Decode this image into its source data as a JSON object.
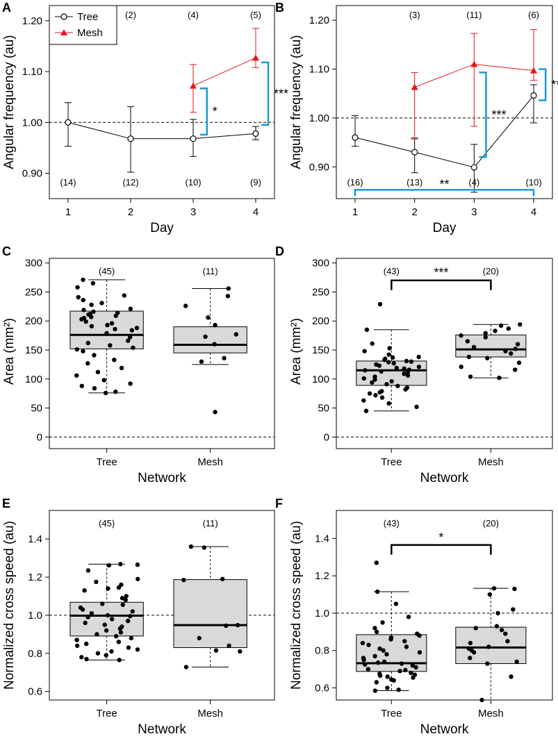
{
  "colors": {
    "tree": "#000000",
    "mesh": "#e8141b",
    "bracket": "#1a9ad6",
    "box_fill": "#d9d9d9"
  },
  "legend": {
    "tree": "Tree",
    "mesh": "Mesh"
  },
  "chart_data": [
    {
      "panel": "A",
      "type": "line",
      "xlabel": "Day",
      "ylabel": "Angular frequency (au)",
      "x_ticks": [
        1,
        2,
        3,
        4
      ],
      "y_ticks": [
        "0.90",
        "1.00",
        "1.10",
        "1.20"
      ],
      "ylim": [
        0.85,
        1.23
      ],
      "reference_line": 1.0,
      "series": [
        {
          "name": "Tree",
          "x": [
            1,
            2,
            3,
            4
          ],
          "y": [
            1.0,
            0.968,
            0.968,
            0.978
          ],
          "lower": [
            0.953,
            0.902,
            0.933,
            0.966
          ],
          "upper": [
            1.039,
            1.031,
            1.006,
            0.992
          ],
          "n": [
            "(14)",
            "(12)",
            "(10)",
            "(9)"
          ]
        },
        {
          "name": "Mesh",
          "x": [
            3,
            4
          ],
          "y": [
            1.072,
            1.127
          ],
          "lower": [
            1.02,
            1.108
          ],
          "upper": [
            1.114,
            1.185
          ],
          "n": [
            "(4)",
            "(5)"
          ]
        }
      ],
      "top_counts": [
        {
          "x": 2,
          "label": "(2)"
        },
        {
          "x": 3,
          "label": "(4)"
        },
        {
          "x": 4,
          "label": "(5)"
        }
      ],
      "bottom_counts": [
        {
          "x": 1,
          "label": "(14)"
        },
        {
          "x": 2,
          "label": "(12)"
        },
        {
          "x": 3,
          "label": "(10)"
        },
        {
          "x": 4,
          "label": "(9)"
        }
      ],
      "significance": [
        {
          "orientation": "vertical",
          "x": 3.22,
          "y1": 0.976,
          "y2": 1.067,
          "label": "*"
        },
        {
          "orientation": "vertical",
          "x": 4.2,
          "y1": 0.995,
          "y2": 1.118,
          "label": "***"
        }
      ]
    },
    {
      "panel": "B",
      "type": "line",
      "xlabel": "Day",
      "ylabel": "Angular frequency (au)",
      "x_ticks": [
        1,
        2,
        3,
        4
      ],
      "y_ticks": [
        "0.90",
        "1.00",
        "1.10",
        "1.20"
      ],
      "ylim": [
        0.835,
        1.23
      ],
      "reference_line": 1.0,
      "series": [
        {
          "name": "Tree",
          "x": [
            1,
            2,
            3,
            4
          ],
          "y": [
            0.96,
            0.93,
            0.899,
            1.046
          ],
          "lower": [
            0.942,
            0.888,
            0.848,
            0.99
          ],
          "upper": [
            1.005,
            0.959,
            0.946,
            1.068
          ],
          "n": [
            "(16)",
            "(13)",
            "(4)",
            "(10)"
          ]
        },
        {
          "name": "Mesh",
          "x": [
            2,
            3,
            4
          ],
          "y": [
            1.063,
            1.11,
            1.097
          ],
          "lower": [
            0.957,
            0.983,
            1.077
          ],
          "upper": [
            1.093,
            1.173,
            1.181
          ],
          "n": [
            "(3)",
            "(11)",
            "(6)"
          ]
        }
      ],
      "top_counts": [
        {
          "x": 2,
          "label": "(3)"
        },
        {
          "x": 3,
          "label": "(11)"
        },
        {
          "x": 4,
          "label": "(6)"
        }
      ],
      "bottom_counts": [
        {
          "x": 1,
          "label": "(16)"
        },
        {
          "x": 2,
          "label": "(13)"
        },
        {
          "x": 3,
          "label": "(4)"
        },
        {
          "x": 4,
          "label": "(10)"
        }
      ],
      "significance": [
        {
          "orientation": "vertical",
          "x": 3.2,
          "y1": 0.92,
          "y2": 1.093,
          "label": "***"
        },
        {
          "orientation": "vertical",
          "x": 4.2,
          "y1": 1.036,
          "y2": 1.1,
          "label": "**"
        },
        {
          "orientation": "horizontal",
          "x1": 1,
          "x2": 4,
          "y": 0.853,
          "label": "**"
        }
      ]
    },
    {
      "panel": "C",
      "type": "box",
      "xlabel": "Network",
      "ylabel": "Area (mm²)",
      "categories": [
        "Tree",
        "Mesh"
      ],
      "y_ticks": [
        0,
        50,
        100,
        150,
        200,
        250,
        300
      ],
      "ylim": [
        -20,
        308
      ],
      "reference_line": 0,
      "counts": [
        "(45)",
        "(11)"
      ],
      "boxes": [
        {
          "name": "Tree",
          "min": 76,
          "q1": 152,
          "median": 176,
          "q3": 217,
          "max": 271
        },
        {
          "name": "Mesh",
          "min": 125,
          "q1": 145,
          "median": 159,
          "q3": 190,
          "max": 256
        }
      ],
      "points": [
        {
          "cat": 0,
          "values": [
            271,
            265,
            258,
            244,
            241,
            236,
            231,
            228,
            221,
            219,
            216,
            214,
            212,
            211,
            209,
            207,
            205,
            203,
            199,
            196,
            193,
            191,
            188,
            186,
            184,
            179,
            172,
            166,
            162,
            158,
            154,
            151,
            148,
            141,
            133,
            127,
            119,
            112,
            106,
            98,
            92,
            88,
            84,
            78,
            76
          ]
        },
        {
          "cat": 1,
          "values": [
            256,
            243,
            226,
            206,
            193,
            177,
            173,
            160,
            136,
            130,
            43
          ]
        }
      ],
      "significance": []
    },
    {
      "panel": "D",
      "type": "box",
      "xlabel": "Network",
      "ylabel": "Area (mm²)",
      "categories": [
        "Tree",
        "Mesh"
      ],
      "y_ticks": [
        0,
        50,
        100,
        150,
        200,
        250,
        300
      ],
      "ylim": [
        -20,
        308
      ],
      "reference_line": 0,
      "counts": [
        "(43)",
        "(20)"
      ],
      "boxes": [
        {
          "name": "Tree",
          "min": 45,
          "q1": 89,
          "median": 115,
          "q3": 131,
          "max": 185
        },
        {
          "name": "Mesh",
          "min": 102,
          "q1": 138,
          "median": 151,
          "q3": 176,
          "max": 194
        }
      ],
      "points": [
        {
          "cat": 0,
          "values": [
            229,
            185,
            161,
            153,
            148,
            142,
            138,
            137,
            135,
            133,
            131,
            130,
            129,
            127,
            125,
            123,
            121,
            119,
            118,
            116,
            115,
            113,
            111,
            109,
            106,
            104,
            101,
            99,
            96,
            94,
            91,
            88,
            85,
            82,
            79,
            77,
            75,
            72,
            68,
            63,
            58,
            52,
            45
          ]
        },
        {
          "cat": 1,
          "values": [
            194,
            192,
            187,
            183,
            179,
            175,
            172,
            165,
            160,
            155,
            152,
            148,
            144,
            138,
            136,
            128,
            121,
            116,
            104,
            102
          ]
        }
      ],
      "significance": [
        {
          "orientation": "horizontal",
          "x1": 0,
          "x2": 1,
          "y": 270,
          "label": "***"
        }
      ]
    },
    {
      "panel": "E",
      "type": "box",
      "xlabel": "Network",
      "ylabel": "Normalized cross speed (au)",
      "categories": [
        "Tree",
        "Mesh"
      ],
      "y_ticks": [
        "0.6",
        "0.8",
        "1.0",
        "1.2",
        "1.4"
      ],
      "ylim": [
        0.555,
        1.55
      ],
      "reference_line": 1.0,
      "counts": [
        "(45)",
        "(11)"
      ],
      "boxes": [
        {
          "name": "Tree",
          "min": 0.765,
          "q1": 0.891,
          "median": 0.998,
          "q3": 1.068,
          "max": 1.268
        },
        {
          "name": "Mesh",
          "min": 0.728,
          "q1": 0.83,
          "median": 0.948,
          "q3": 1.187,
          "max": 1.36
        }
      ],
      "points": [
        {
          "cat": 0,
          "values": [
            1.268,
            1.265,
            1.262,
            1.235,
            1.19,
            1.175,
            1.16,
            1.145,
            1.14,
            1.13,
            1.1,
            1.09,
            1.08,
            1.06,
            1.055,
            1.04,
            1.03,
            1.02,
            1.01,
            1.0,
            0.995,
            0.99,
            0.98,
            0.97,
            0.96,
            0.95,
            0.94,
            0.93,
            0.92,
            0.91,
            0.9,
            0.89,
            0.88,
            0.87,
            0.86,
            0.85,
            0.84,
            0.83,
            0.82,
            0.81,
            0.8,
            0.79,
            0.78,
            0.77,
            0.765
          ]
        },
        {
          "cat": 1,
          "values": [
            1.36,
            1.355,
            1.19,
            1.185,
            0.948,
            0.945,
            0.88,
            0.84,
            0.815,
            0.81,
            0.728
          ]
        }
      ],
      "significance": []
    },
    {
      "panel": "F",
      "type": "box",
      "xlabel": "Network",
      "ylabel": "Normalized cross speed (au)",
      "categories": [
        "Tree",
        "Mesh"
      ],
      "y_ticks": [
        "0.6",
        "0.8",
        "1.0",
        "1.2",
        "1.4"
      ],
      "ylim": [
        0.535,
        1.55
      ],
      "reference_line": 1.0,
      "counts": [
        "(43)",
        "(20)"
      ],
      "boxes": [
        {
          "name": "Tree",
          "min": 0.585,
          "q1": 0.688,
          "median": 0.732,
          "q3": 0.885,
          "max": 1.115
        },
        {
          "name": "Mesh",
          "min": 0.535,
          "q1": 0.73,
          "median": 0.816,
          "q3": 0.925,
          "max": 1.133
        }
      ],
      "points": [
        {
          "cat": 0,
          "values": [
            1.27,
            1.115,
            1.05,
            0.98,
            0.95,
            0.92,
            0.9,
            0.89,
            0.88,
            0.87,
            0.86,
            0.85,
            0.84,
            0.83,
            0.82,
            0.81,
            0.8,
            0.79,
            0.78,
            0.77,
            0.76,
            0.75,
            0.74,
            0.735,
            0.73,
            0.725,
            0.72,
            0.71,
            0.7,
            0.695,
            0.69,
            0.68,
            0.675,
            0.67,
            0.665,
            0.66,
            0.655,
            0.645,
            0.64,
            0.63,
            0.6,
            0.59,
            0.585
          ]
        },
        {
          "cat": 1,
          "values": [
            1.133,
            1.13,
            1.1,
            1.02,
            1.0,
            0.93,
            0.92,
            0.91,
            0.89,
            0.85,
            0.84,
            0.82,
            0.81,
            0.8,
            0.79,
            0.76,
            0.74,
            0.73,
            0.66,
            0.535
          ]
        }
      ],
      "significance": [
        {
          "orientation": "horizontal",
          "x1": 0,
          "x2": 1,
          "y": 1.365,
          "label": "*"
        }
      ]
    }
  ]
}
